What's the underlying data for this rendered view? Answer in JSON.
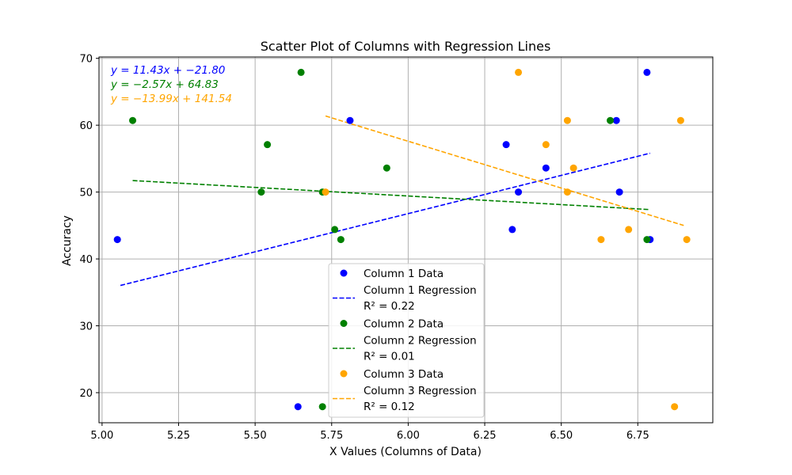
{
  "chart_data": {
    "type": "scatter",
    "title": "Scatter Plot of Columns with Regression Lines",
    "xlabel": "X Values (Columns of Data)",
    "ylabel": "Accuracy",
    "xlim": [
      4.99,
      6.995
    ],
    "ylim": [
      15.5,
      70.2
    ],
    "xticks": [
      5.0,
      5.25,
      5.5,
      5.75,
      6.0,
      6.25,
      6.5,
      6.75
    ],
    "xtick_labels": [
      "5.00",
      "5.25",
      "5.50",
      "5.75",
      "6.00",
      "6.25",
      "6.50",
      "6.75"
    ],
    "yticks": [
      20,
      30,
      40,
      50,
      60,
      70
    ],
    "ytick_labels": [
      "20",
      "30",
      "40",
      "50",
      "60",
      "70"
    ],
    "grid": true,
    "legend_position": "lower-center",
    "equations": [
      {
        "text": "y = 11.43x + −21.80",
        "color": "#0000ff"
      },
      {
        "text": "y = −2.57x + 64.83",
        "color": "#008000"
      },
      {
        "text": "y = −13.99x + 141.54",
        "color": "#ffa500"
      }
    ],
    "series": [
      {
        "name": "Column 1 Data",
        "regression_name": "Column 1 Regression",
        "r2_label": "R² = 0.22",
        "color": "#0000ff",
        "slope": 11.43,
        "intercept": -21.8,
        "x_range": [
          5.06,
          6.79
        ],
        "points": [
          [
            5.05,
            42.9
          ],
          [
            5.64,
            17.9
          ],
          [
            5.81,
            60.7
          ],
          [
            6.32,
            57.1
          ],
          [
            6.34,
            44.4
          ],
          [
            6.36,
            50.0
          ],
          [
            6.45,
            53.6
          ],
          [
            6.68,
            60.7
          ],
          [
            6.69,
            50.0
          ],
          [
            6.78,
            67.9
          ],
          [
            6.79,
            42.9
          ]
        ]
      },
      {
        "name": "Column 2 Data",
        "regression_name": "Column 2 Regression",
        "r2_label": "R² = 0.01",
        "color": "#008000",
        "slope": -2.57,
        "intercept": 64.83,
        "x_range": [
          5.1,
          6.79
        ],
        "points": [
          [
            5.1,
            60.7
          ],
          [
            5.52,
            50.0
          ],
          [
            5.54,
            57.1
          ],
          [
            5.65,
            67.9
          ],
          [
            5.72,
            17.9
          ],
          [
            5.72,
            50.0
          ],
          [
            5.76,
            44.4
          ],
          [
            5.78,
            42.9
          ],
          [
            5.93,
            53.6
          ],
          [
            6.66,
            60.7
          ],
          [
            6.78,
            42.9
          ]
        ]
      },
      {
        "name": "Column 3 Data",
        "regression_name": "Column 3 Regression",
        "r2_label": "R² = 0.12",
        "color": "#ffa500",
        "slope": -13.99,
        "intercept": 141.54,
        "x_range": [
          5.73,
          6.9
        ],
        "points": [
          [
            5.73,
            50.0
          ],
          [
            6.36,
            67.9
          ],
          [
            6.45,
            57.1
          ],
          [
            6.52,
            60.7
          ],
          [
            6.52,
            50.0
          ],
          [
            6.54,
            53.6
          ],
          [
            6.63,
            42.9
          ],
          [
            6.72,
            44.4
          ],
          [
            6.87,
            17.9
          ],
          [
            6.89,
            60.7
          ],
          [
            6.91,
            42.9
          ]
        ]
      }
    ]
  }
}
